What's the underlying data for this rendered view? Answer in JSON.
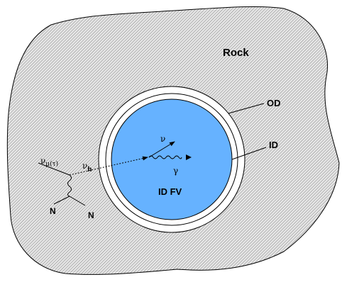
{
  "labels": {
    "rock": "Rock",
    "od": "OD",
    "id": "ID",
    "id_fv": "ID FV",
    "nu_mu_tau_base": "ν",
    "nu_mu_tau_sub": "μ(τ)",
    "nu_h_base": "ν",
    "nu_h_sub": "h",
    "nucleon_in": "N",
    "nucleon_out": "N",
    "nu_out": "ν",
    "gamma": "γ"
  },
  "colors": {
    "rock_fill": "#e6e6e6",
    "rock_hatch": "#7a7a7a",
    "outline": "#000000",
    "od_ring": "#ffffff",
    "inner_detector": "#66b2ff",
    "background": "#ffffff"
  }
}
